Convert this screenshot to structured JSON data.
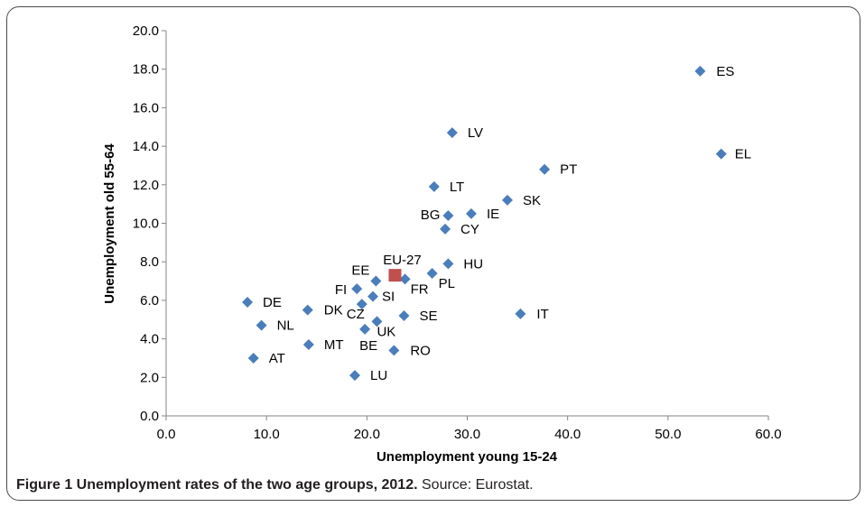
{
  "figure": {
    "caption_bold": "Figure 1 Unemployment rates of the two age groups, 2012.",
    "caption_rest": " Source: Eurostat."
  },
  "chart_data": {
    "type": "scatter",
    "xlabel": "Unemployment young 15-24",
    "ylabel": "Unemployment old 55-64",
    "xlim": [
      0,
      60
    ],
    "ylim": [
      0,
      20
    ],
    "x_ticks": [
      "0.0",
      "10.0",
      "20.0",
      "30.0",
      "40.0",
      "50.0",
      "60.0"
    ],
    "y_ticks": [
      "0.0",
      "2.0",
      "4.0",
      "6.0",
      "8.0",
      "10.0",
      "12.0",
      "14.0",
      "16.0",
      "18.0",
      "20.0"
    ],
    "grid": false,
    "legend": "none",
    "colors": {
      "country": "#4a7ebb",
      "eu": "#c0504d"
    },
    "series": [
      {
        "marker": "diamond",
        "points": [
          {
            "label": "ES",
            "x": 53.2,
            "y": 17.9
          },
          {
            "label": "EL",
            "x": 55.3,
            "y": 13.6
          },
          {
            "label": "LV",
            "x": 28.5,
            "y": 14.7
          },
          {
            "label": "PT",
            "x": 37.7,
            "y": 12.8
          },
          {
            "label": "LT",
            "x": 26.7,
            "y": 11.9
          },
          {
            "label": "SK",
            "x": 34.0,
            "y": 11.2
          },
          {
            "label": "BG",
            "x": 28.1,
            "y": 10.4
          },
          {
            "label": "IE",
            "x": 30.4,
            "y": 10.5
          },
          {
            "label": "CY",
            "x": 27.8,
            "y": 9.7
          },
          {
            "label": "HU",
            "x": 28.1,
            "y": 7.9
          },
          {
            "label": "PL",
            "x": 26.5,
            "y": 7.4
          },
          {
            "label": "FR",
            "x": 23.8,
            "y": 7.1
          },
          {
            "label": "EE",
            "x": 20.9,
            "y": 7.0
          },
          {
            "label": "FI",
            "x": 19.0,
            "y": 6.6
          },
          {
            "label": "SI",
            "x": 20.6,
            "y": 6.2
          },
          {
            "label": "CZ",
            "x": 19.5,
            "y": 5.8
          },
          {
            "label": "DE",
            "x": 8.1,
            "y": 5.9
          },
          {
            "label": "DK",
            "x": 14.1,
            "y": 5.5
          },
          {
            "label": "NL",
            "x": 9.5,
            "y": 4.7
          },
          {
            "label": "IT",
            "x": 35.3,
            "y": 5.3
          },
          {
            "label": "SE",
            "x": 23.7,
            "y": 5.2
          },
          {
            "label": "UK",
            "x": 21.0,
            "y": 4.9
          },
          {
            "label": "BE",
            "x": 19.8,
            "y": 4.5
          },
          {
            "label": "MT",
            "x": 14.2,
            "y": 3.7
          },
          {
            "label": "RO",
            "x": 22.7,
            "y": 3.4
          },
          {
            "label": "AT",
            "x": 8.7,
            "y": 3.0
          },
          {
            "label": "LU",
            "x": 18.8,
            "y": 2.1
          }
        ]
      },
      {
        "marker": "square",
        "points": [
          {
            "label": "EU-27",
            "x": 22.8,
            "y": 7.3
          }
        ]
      }
    ]
  }
}
